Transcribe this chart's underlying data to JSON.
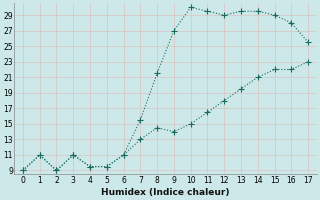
{
  "xlabel": "Humidex (Indice chaleur)",
  "bg_color": "#cce8e8",
  "line_color": "#1a6b5a",
  "grid_color": "#c0d8d8",
  "xlim": [
    -0.5,
    17.5
  ],
  "ylim": [
    8.5,
    30.5
  ],
  "xticks": [
    0,
    1,
    2,
    3,
    4,
    5,
    6,
    7,
    8,
    9,
    10,
    11,
    12,
    13,
    14,
    15,
    16,
    17
  ],
  "yticks": [
    9,
    11,
    13,
    15,
    17,
    19,
    21,
    23,
    25,
    27,
    29
  ],
  "series1_x": [
    0,
    1,
    2,
    3,
    4,
    5,
    6,
    7,
    8,
    9,
    10,
    11,
    12,
    13,
    14,
    15,
    16,
    17
  ],
  "series1_y": [
    9,
    11,
    9,
    11,
    9.5,
    9.5,
    11,
    15.5,
    21.5,
    27,
    30,
    29.5,
    29,
    29.5,
    29.5,
    29,
    28,
    25.5
  ],
  "series2_x": [
    0,
    1,
    2,
    3,
    4,
    5,
    6,
    7,
    8,
    9,
    10,
    11,
    12,
    13,
    14,
    15,
    16,
    17
  ],
  "series2_y": [
    9,
    11,
    9,
    11,
    9.5,
    9.5,
    11,
    13.0,
    14.5,
    14,
    15,
    16.5,
    18,
    19.5,
    21,
    22,
    22,
    23
  ],
  "marker": "+",
  "markersize": 4,
  "linewidth": 0.8,
  "xlabel_fontsize": 6.5,
  "tick_fontsize": 5.5
}
